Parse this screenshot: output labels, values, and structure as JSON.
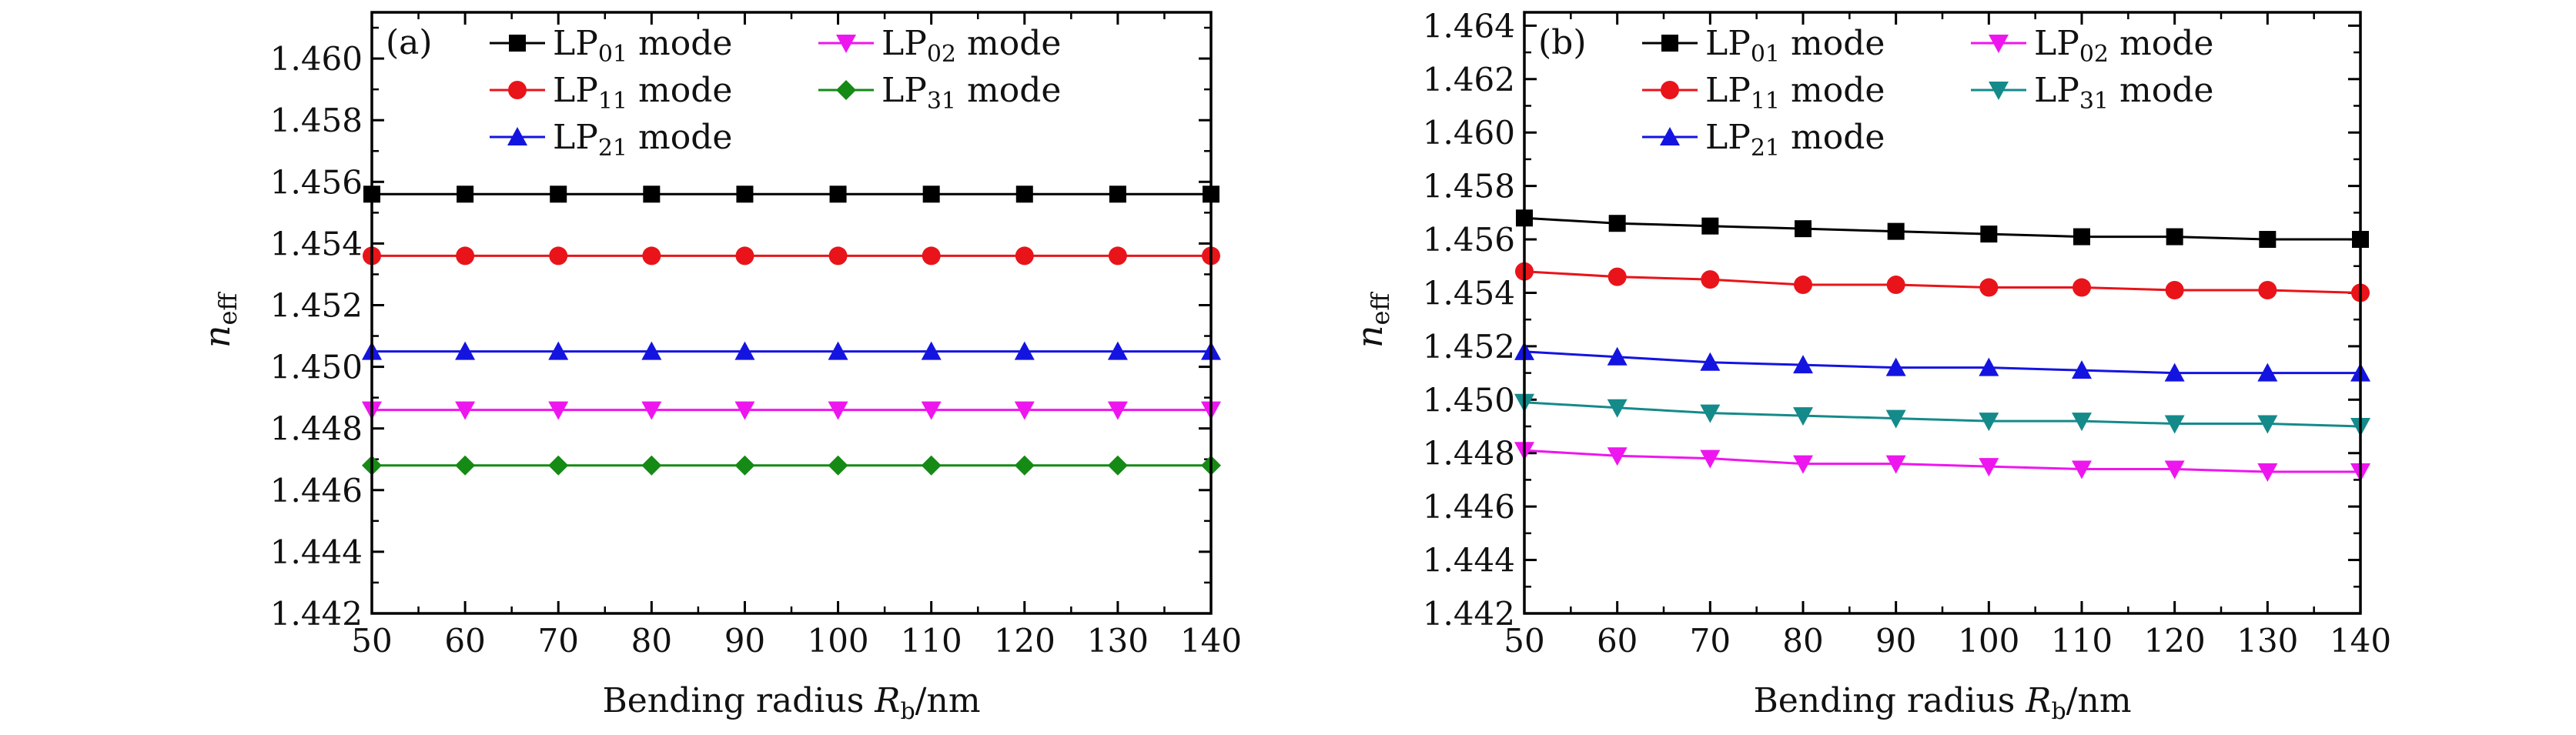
{
  "chart_data": [
    {
      "panel_label": "(a)",
      "type": "line",
      "xlabel_prefix": "Bending radius ",
      "xlabel_var": "R",
      "xlabel_sub": "b",
      "xlabel_suffix": "/nm",
      "ylabel_var": "n",
      "ylabel_sub": "eff",
      "xlim": [
        50,
        140
      ],
      "ylim": [
        1.442,
        1.4615
      ],
      "xticks": [
        "50",
        "60",
        "70",
        "80",
        "90",
        "100",
        "110",
        "120",
        "130",
        "140"
      ],
      "yticks": [
        "1.442",
        "1.444",
        "1.446",
        "1.448",
        "1.450",
        "1.452",
        "1.454",
        "1.456",
        "1.458",
        "1.460"
      ],
      "x": [
        50,
        60,
        70,
        80,
        90,
        100,
        110,
        120,
        130,
        140
      ],
      "legend_layout": "2-columns, top",
      "series": [
        {
          "lp_sub": "01",
          "name_suffix": " mode",
          "color": "#000000",
          "marker": "square",
          "values": [
            1.4556,
            1.4556,
            1.4556,
            1.4556,
            1.4556,
            1.4556,
            1.4556,
            1.4556,
            1.4556,
            1.4556
          ]
        },
        {
          "lp_sub": "11",
          "name_suffix": " mode",
          "color": "#e8141a",
          "marker": "circle",
          "values": [
            1.4536,
            1.4536,
            1.4536,
            1.4536,
            1.4536,
            1.4536,
            1.4536,
            1.4536,
            1.4536,
            1.4536
          ]
        },
        {
          "lp_sub": "21",
          "name_suffix": " mode",
          "color": "#1414e0",
          "marker": "triangle-up",
          "values": [
            1.4505,
            1.4505,
            1.4505,
            1.4505,
            1.4505,
            1.4505,
            1.4505,
            1.4505,
            1.4505,
            1.4505
          ]
        },
        {
          "lp_sub": "02",
          "name_suffix": " mode",
          "color": "#ee16ee",
          "marker": "triangle-down",
          "values": [
            1.4486,
            1.4486,
            1.4486,
            1.4486,
            1.4486,
            1.4486,
            1.4486,
            1.4486,
            1.4486,
            1.4486
          ]
        },
        {
          "lp_sub": "31",
          "name_suffix": " mode",
          "color": "#158a15",
          "marker": "diamond",
          "values": [
            1.4468,
            1.4468,
            1.4468,
            1.4468,
            1.4468,
            1.4468,
            1.4468,
            1.4468,
            1.4468,
            1.4468
          ]
        }
      ]
    },
    {
      "panel_label": "(b)",
      "type": "line",
      "xlabel_prefix": "Bending radius ",
      "xlabel_var": "R",
      "xlabel_sub": "b",
      "xlabel_suffix": "/nm",
      "ylabel_var": "n",
      "ylabel_sub": "eff",
      "xlim": [
        50,
        140
      ],
      "ylim": [
        1.442,
        1.4645
      ],
      "xticks": [
        "50",
        "60",
        "70",
        "80",
        "90",
        "100",
        "110",
        "120",
        "130",
        "140"
      ],
      "yticks": [
        "1.442",
        "1.444",
        "1.446",
        "1.448",
        "1.450",
        "1.452",
        "1.454",
        "1.456",
        "1.458",
        "1.460",
        "1.462",
        "1.464"
      ],
      "x": [
        50,
        60,
        70,
        80,
        90,
        100,
        110,
        120,
        130,
        140
      ],
      "legend_layout": "2-columns, top",
      "series": [
        {
          "lp_sub": "01",
          "name_suffix": " mode",
          "color": "#000000",
          "marker": "square",
          "values": [
            1.4568,
            1.4566,
            1.4565,
            1.4564,
            1.4563,
            1.4562,
            1.4561,
            1.4561,
            1.456,
            1.456
          ]
        },
        {
          "lp_sub": "11",
          "name_suffix": " mode",
          "color": "#e8141a",
          "marker": "circle",
          "values": [
            1.4548,
            1.4546,
            1.4545,
            1.4543,
            1.4543,
            1.4542,
            1.4542,
            1.4541,
            1.4541,
            1.454
          ]
        },
        {
          "lp_sub": "21",
          "name_suffix": " mode",
          "color": "#1414e0",
          "marker": "triangle-up",
          "values": [
            1.4518,
            1.4516,
            1.4514,
            1.4513,
            1.4512,
            1.4512,
            1.4511,
            1.451,
            1.451,
            1.451
          ]
        },
        {
          "lp_sub": "02",
          "name_suffix": " mode",
          "color": "#ee16ee",
          "marker": "triangle-down",
          "values": [
            1.4481,
            1.4479,
            1.4478,
            1.4476,
            1.4476,
            1.4475,
            1.4474,
            1.4474,
            1.4473,
            1.4473
          ]
        },
        {
          "lp_sub": "31",
          "name_suffix": " mode",
          "color": "#158a8a",
          "marker": "triangle-down",
          "values": [
            1.4499,
            1.4497,
            1.4495,
            1.4494,
            1.4493,
            1.4492,
            1.4492,
            1.4491,
            1.4491,
            1.449
          ]
        }
      ]
    }
  ]
}
